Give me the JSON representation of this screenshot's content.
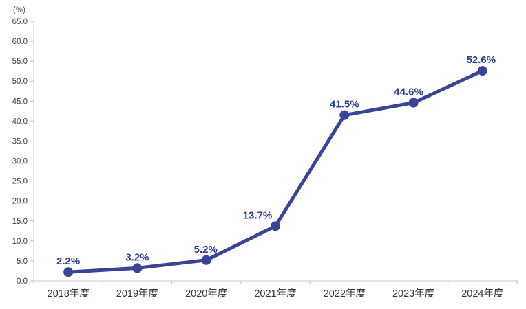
{
  "chart_data": {
    "type": "line",
    "title": "",
    "unit_label": "(%)",
    "categories": [
      "2018年度",
      "2019年度",
      "2020年度",
      "2021年度",
      "2022年度",
      "2023年度",
      "2024年度"
    ],
    "series": [
      {
        "name": "rate",
        "values": [
          2.2,
          3.2,
          5.2,
          13.7,
          41.5,
          44.6,
          52.6
        ],
        "labels": [
          "2.2%",
          "3.2%",
          "5.2%",
          "13.7%",
          "41.5%",
          "44.6%",
          "52.6%"
        ]
      }
    ],
    "xlabel": "",
    "ylabel": "(%)",
    "ylim": [
      0,
      65
    ],
    "ytick_step": 5,
    "ytick_decimals": 1,
    "grid": false,
    "legend_position": "none",
    "colors": {
      "line": "#3a4496",
      "marker": "#3a4496",
      "data_label": "#2d3c99",
      "axis_line": "#dcdcdc",
      "tick_mark": "#c9c9c9",
      "ytick_text": "#404040",
      "xtick_text": "#383838",
      "unit_text": "#595959",
      "background": "#ffffff"
    },
    "label_offsets_x": [
      0,
      0,
      -1,
      -26,
      0,
      -7,
      -2
    ]
  }
}
